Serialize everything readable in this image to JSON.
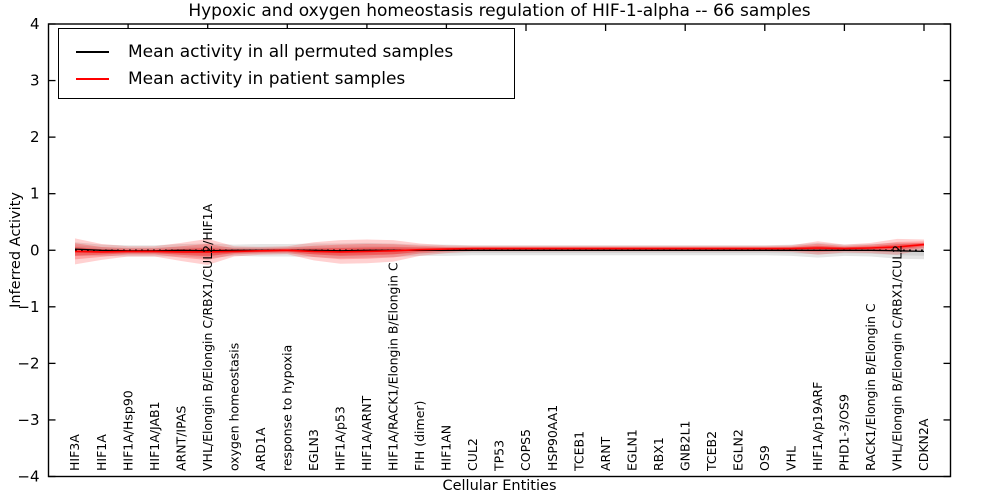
{
  "title": "Hypoxic and oxygen homeostasis regulation of HIF-1-alpha -- 66 samples",
  "legend": {
    "items": [
      {
        "label": "Mean activity in all permuted samples",
        "color": "#000000"
      },
      {
        "label": "Mean activity in patient samples",
        "color": "#ff0000"
      }
    ],
    "position": "upper left"
  },
  "chart_data": {
    "type": "line",
    "title": "Hypoxic and oxygen homeostasis regulation of HIF-1-alpha -- 66 samples",
    "xlabel": "Cellular Entities",
    "ylabel": "Inferred Activity",
    "ylim": [
      -4,
      4
    ],
    "yticks": [
      4,
      3,
      2,
      1,
      0,
      -1,
      -2,
      -3,
      -4
    ],
    "ytick_labels": [
      "4",
      "3",
      "2",
      "1",
      "0",
      "−1",
      "−2",
      "−3",
      "−4"
    ],
    "grid": false,
    "legend_position": "upper left",
    "categories": [
      "HIF3A",
      "HIF1A",
      "HIF1A/Hsp90",
      "HIF1A/JAB1",
      "ARNT/IPAS",
      "VHL/Elongin B/Elongin C/RBX1/CUL2/HIF1A",
      "oxygen homeostasis",
      "ARD1A",
      "response to hypoxia",
      "EGLN3",
      "HIF1A/p53",
      "HIF1A/ARNT",
      "HIF1A/RACK1/Elongin B/Elongin C",
      "FIH (dimer)",
      "HIF1AN",
      "CUL2",
      "TP53",
      "COPS5",
      "HSP90AA1",
      "TCEB1",
      "ARNT",
      "EGLN1",
      "RBX1",
      "GNB2L1",
      "TCEB2",
      "EGLN2",
      "OS9",
      "VHL",
      "HIF1A/p19ARF",
      "PHD1-3/OS9",
      "RACK1/Elongin B/Elongin C",
      "VHL/Elongin B/Elongin C/RBX1/CUL2",
      "CDKN2A"
    ],
    "zero_reference_line": 0,
    "series": [
      {
        "name": "Mean activity in all permuted samples",
        "color": "#000000",
        "style": "solid",
        "values": [
          0.02,
          0.0,
          -0.01,
          -0.01,
          0.0,
          -0.01,
          0.0,
          0.0,
          0.0,
          0.0,
          -0.01,
          0.0,
          0.0,
          0.0,
          0.0,
          0.0,
          0.0,
          0.0,
          0.0,
          0.0,
          0.0,
          0.0,
          0.0,
          0.0,
          0.0,
          0.0,
          0.0,
          0.0,
          0.0,
          0.0,
          0.0,
          -0.01,
          -0.02
        ]
      },
      {
        "name": "Mean activity in patient samples",
        "color": "#ff0000",
        "style": "solid",
        "values": [
          -0.02,
          -0.03,
          -0.02,
          -0.02,
          -0.03,
          -0.03,
          -0.02,
          -0.01,
          0.0,
          -0.02,
          -0.03,
          -0.02,
          -0.01,
          0.01,
          0.02,
          0.03,
          0.03,
          0.03,
          0.03,
          0.03,
          0.03,
          0.03,
          0.03,
          0.03,
          0.03,
          0.03,
          0.03,
          0.03,
          0.04,
          0.03,
          0.04,
          0.06,
          0.1
        ]
      }
    ],
    "bands": [
      {
        "name": "permuted-samples-range",
        "series": 0,
        "color": "#000000",
        "alpha": 0.1,
        "halfwidths": [
          0.12,
          0.1,
          0.1,
          0.1,
          0.11,
          0.13,
          0.1,
          0.11,
          0.11,
          0.12,
          0.13,
          0.13,
          0.12,
          0.1,
          0.1,
          0.09,
          0.09,
          0.09,
          0.09,
          0.09,
          0.09,
          0.09,
          0.09,
          0.09,
          0.09,
          0.09,
          0.09,
          0.1,
          0.13,
          0.1,
          0.11,
          0.14,
          0.14
        ]
      },
      {
        "name": "patient-samples-range",
        "series": 1,
        "color": "#ff0000",
        "alpha": 0.2,
        "halfwidths": [
          0.23,
          0.14,
          0.09,
          0.09,
          0.16,
          0.23,
          0.09,
          0.07,
          0.07,
          0.16,
          0.21,
          0.21,
          0.19,
          0.11,
          0.07,
          0.05,
          0.05,
          0.05,
          0.05,
          0.05,
          0.05,
          0.05,
          0.05,
          0.05,
          0.05,
          0.05,
          0.05,
          0.06,
          0.12,
          0.07,
          0.09,
          0.14,
          0.09
        ]
      }
    ]
  }
}
